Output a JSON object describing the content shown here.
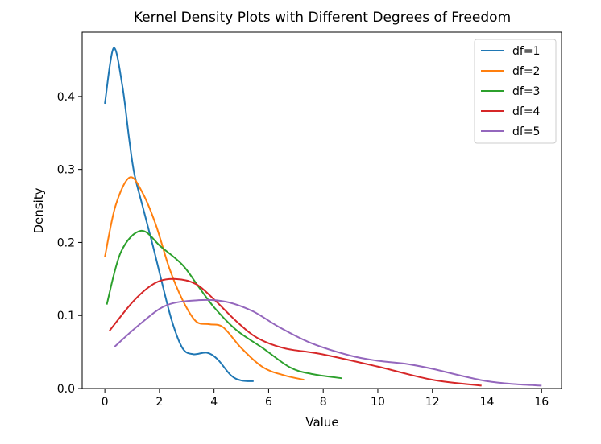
{
  "chart_data": {
    "type": "line",
    "title": "Kernel Density Plots with Different Degrees of Freedom",
    "xlabel": "Value",
    "ylabel": "Density",
    "xlim": [
      -0.83,
      16.73
    ],
    "ylim": [
      0,
      0.488
    ],
    "xticks": [
      0,
      2,
      4,
      6,
      8,
      10,
      12,
      14,
      16
    ],
    "yticks": [
      0.0,
      0.1,
      0.2,
      0.3,
      0.4
    ],
    "xtick_labels": [
      "0",
      "2",
      "4",
      "6",
      "8",
      "10",
      "12",
      "14",
      "16"
    ],
    "ytick_labels": [
      "0.0",
      "0.1",
      "0.2",
      "0.3",
      "0.4"
    ],
    "grid": false,
    "legend_position": "top-right",
    "series": [
      {
        "name": "df=1",
        "color": "#1f77b4",
        "x": [
          0,
          0.32,
          0.64,
          0.89,
          1.08,
          1.38,
          1.77,
          2.06,
          2.46,
          2.85,
          3.24,
          3.74,
          4.13,
          4.62,
          5.0,
          5.45
        ],
        "y": [
          0.39,
          0.466,
          0.415,
          0.342,
          0.294,
          0.25,
          0.194,
          0.15,
          0.092,
          0.055,
          0.047,
          0.049,
          0.04,
          0.018,
          0.011,
          0.01
        ]
      },
      {
        "name": "df=2",
        "color": "#ff7f0e",
        "x": [
          0,
          0.39,
          0.91,
          1.38,
          1.87,
          2.36,
          2.85,
          3.34,
          3.83,
          4.33,
          5.01,
          5.8,
          6.58,
          7.3
        ],
        "y": [
          0.18,
          0.25,
          0.289,
          0.268,
          0.224,
          0.165,
          0.121,
          0.092,
          0.088,
          0.084,
          0.055,
          0.029,
          0.018,
          0.012
        ]
      },
      {
        "name": "df=3",
        "color": "#2ca02c",
        "x": [
          0.07,
          0.59,
          1.33,
          2.06,
          2.85,
          3.44,
          4.03,
          4.82,
          5.8,
          6.78,
          7.57,
          8.7
        ],
        "y": [
          0.115,
          0.187,
          0.216,
          0.194,
          0.169,
          0.139,
          0.11,
          0.08,
          0.055,
          0.029,
          0.02,
          0.014
        ]
      },
      {
        "name": "df=4",
        "color": "#d62728",
        "x": [
          0.17,
          1.08,
          1.87,
          2.6,
          3.34,
          4.03,
          4.82,
          5.6,
          6.59,
          7.96,
          10,
          12,
          13.8
        ],
        "y": [
          0.079,
          0.121,
          0.145,
          0.15,
          0.143,
          0.121,
          0.092,
          0.069,
          0.055,
          0.047,
          0.03,
          0.012,
          0.004
        ]
      },
      {
        "name": "df=5",
        "color": "#9467bd",
        "x": [
          0.35,
          1.28,
          2.26,
          3.44,
          4.42,
          5.41,
          6.39,
          7.57,
          9,
          10,
          11,
          12,
          13,
          14,
          15,
          16
        ],
        "y": [
          0.057,
          0.088,
          0.114,
          0.121,
          0.119,
          0.106,
          0.084,
          0.062,
          0.045,
          0.038,
          0.034,
          0.027,
          0.018,
          0.01,
          0.006,
          0.004
        ]
      }
    ]
  }
}
